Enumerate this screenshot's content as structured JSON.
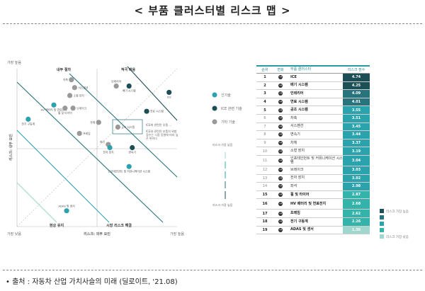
{
  "title": "< 부품 클러스터별 리스크 맵 >",
  "source": "• 출처 : 자동차 산업 가치사슬의 미래 (딜로이트, '21.08)",
  "colors": {
    "dark": "#1c4e55",
    "mid": "#27747c",
    "teal": "#2ba3ad",
    "light": "#9fd6cd",
    "gray": "#999999"
  },
  "chart_data": {
    "type": "scatter",
    "xlabel": "리스크: 외부 요인",
    "ylabel": "리스크: 내부 요인",
    "x_low": "가장 낮음",
    "x_high": "가장 높음",
    "y_high": "가장 높음",
    "y_low": "가장 낮음",
    "xlim": [
      0,
      10
    ],
    "ylim": [
      0,
      10
    ],
    "zones": [
      "내부 절차",
      "적극 대응",
      "현상 유지",
      "시장 리스크 해결"
    ],
    "callout": "공조 시스템",
    "annotation": "ICE와 관련된 부품의 위험 점수는 시장 동향에 따라 높은 편이다",
    "annotation_short": "ICE에 관련된 부품 ...",
    "legend": [
      {
        "name": "신기술",
        "color": "#2ba3ad"
      },
      {
        "name": "ICE 관련 기술",
        "color": "#1c4e55"
      },
      {
        "name": "기타 기술",
        "color": "#999999"
      }
    ],
    "risk_scale": {
      "low": "리스크 가장 낮음",
      "high": "리스크 가장 높음"
    },
    "points": [
      {
        "label": "차축",
        "x": 3.4,
        "y": 9.3,
        "cat": 2
      },
      {
        "label": "서스펜션",
        "x": 3.6,
        "y": 8.8,
        "cat": 2
      },
      {
        "label": "소형 장치",
        "x": 3.3,
        "y": 8.3,
        "cat": 2
      },
      {
        "label": "HV 배터리 및 연료전지",
        "x": 2.3,
        "y": 7.7,
        "cat": 0
      },
      {
        "label": "휠 및 타이어",
        "x": 3.0,
        "y": 7.5,
        "cat": 2
      },
      {
        "label": "브레이크",
        "x": 3.5,
        "y": 7.5,
        "cat": 2
      },
      {
        "label": "전기 구동계",
        "x": 0.7,
        "y": 6.8,
        "cat": 0
      },
      {
        "label": "차체",
        "x": 5.1,
        "y": 6.6,
        "cat": 2
      },
      {
        "label": "프레임",
        "x": 3.9,
        "y": 5.9,
        "cat": 2
      },
      {
        "label": "인테리어",
        "x": 6.2,
        "y": 8.9,
        "cat": 2
      },
      {
        "label": "배기 시스템",
        "x": 7.0,
        "y": 8.9,
        "cat": 1
      },
      {
        "label": "ICE",
        "x": 9.5,
        "y": 8.5,
        "cat": 1
      },
      {
        "label": "연료 시스템",
        "x": 8.1,
        "y": 7.3,
        "cat": 1
      },
      {
        "label": "공조 시스템",
        "x": 6.3,
        "y": 6.3,
        "cat": 2
      },
      {
        "label": "좌석",
        "x": 5.7,
        "y": 5.2,
        "cat": 2
      },
      {
        "label": "전자 장치",
        "x": 5.8,
        "y": 5.0,
        "cat": 0
      },
      {
        "label": "변속기",
        "x": 7.2,
        "y": 5.0,
        "cat": 1
      },
      {
        "label": "인포테인먼트 및 커뮤니케이션 시스템",
        "x": 7.0,
        "y": 3.8,
        "cat": 0
      },
      {
        "label": "ADAS 및 센서",
        "x": 3.1,
        "y": 1.0,
        "cat": 0
      }
    ]
  },
  "table": {
    "headers": [
      "순위",
      "변화",
      "부품 클러스터",
      "리스크 점수"
    ],
    "rows": [
      {
        "rank": "1",
        "name": "ICE",
        "score": "4.74",
        "tier": 0,
        "bold": true
      },
      {
        "rank": "2",
        "name": "배기 시스템",
        "score": "4.25",
        "tier": 0,
        "bold": true
      },
      {
        "rank": "3",
        "name": "인테리어",
        "score": "4.09",
        "tier": 1,
        "bold": true
      },
      {
        "rank": "4",
        "name": "연료 시스템",
        "score": "4.01",
        "tier": 1,
        "bold": true
      },
      {
        "rank": "5",
        "name": "공조 시스템",
        "score": "3.55",
        "tier": 2,
        "bold": true
      },
      {
        "rank": "6",
        "name": "차축",
        "score": "3.51",
        "tier": 2
      },
      {
        "rank": "7",
        "name": "서스펜션",
        "score": "3.45",
        "tier": 2
      },
      {
        "rank": "8",
        "name": "변속기",
        "score": "3.44",
        "tier": 2
      },
      {
        "rank": "9",
        "name": "차체",
        "score": "3.37",
        "tier": 2
      },
      {
        "rank": "10",
        "name": "소형 장치",
        "score": "3.19",
        "tier": 2
      },
      {
        "rank": "11",
        "name": "인포테인먼트 및 커뮤니케이션 시스템",
        "score": "3.04",
        "tier": 2,
        "tall": true
      },
      {
        "rank": "12",
        "name": "브레이크",
        "score": "3.03",
        "tier": 2
      },
      {
        "rank": "13",
        "name": "전자 장치",
        "score": "3.02",
        "tier": 2
      },
      {
        "rank": "14",
        "name": "좌석",
        "score": "2.98",
        "tier": 2
      },
      {
        "rank": "15",
        "name": "휠 및 타이어",
        "score": "2.87",
        "tier": 3,
        "bold": true
      },
      {
        "rank": "16",
        "name": "HV 배터리 및 연료전지",
        "score": "2.68",
        "tier": 3,
        "bold": true,
        "tall": true
      },
      {
        "rank": "17",
        "name": "프레임",
        "score": "2.62",
        "tier": 3,
        "bold": true
      },
      {
        "rank": "18",
        "name": "전기 구동계",
        "score": "2.26",
        "tier": 3,
        "bold": true
      },
      {
        "rank": "19",
        "name": "ADAS 및 센서",
        "score": "1.36",
        "tier": 4,
        "bold": true
      }
    ],
    "tier_colors": [
      "#1c4e55",
      "#27747c",
      "#2ba3ad",
      "#34b3aa",
      "#9fd6cd"
    ],
    "scale": {
      "high": "리스크 가장 높음",
      "low": "리스크 가장 낮음"
    }
  }
}
